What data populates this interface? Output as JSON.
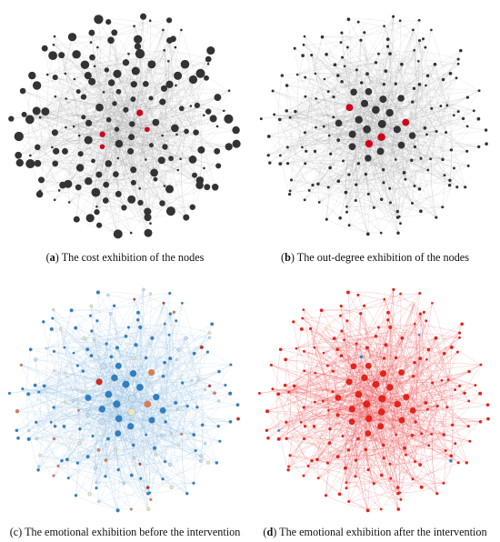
{
  "panels": [
    {
      "id": "a",
      "tag": "a",
      "caption": "The cost exhibition of the nodes",
      "edge_color": "#9a9a9a",
      "node_colors": {
        "base": "#333333",
        "highlight": "#d0021b"
      },
      "mode": "cost"
    },
    {
      "id": "b",
      "tag": "b",
      "caption": "The out-degree exhibition of the nodes",
      "edge_color": "#9a9a9a",
      "node_colors": {
        "base": "#333333",
        "highlight": "#d0021b"
      },
      "mode": "outdegree"
    },
    {
      "id": "c",
      "tag": "c",
      "caption": "The emotional exhibition before the intervention",
      "edge_color": "#8fbbe0",
      "node_colors": {
        "base": "#2f7fc1",
        "light": "#f2e6b8",
        "pale": "#c9ddee",
        "warm": "#e8774a",
        "red": "#d62a1e"
      },
      "mode": "before"
    },
    {
      "id": "d",
      "tag": "d",
      "caption": "The emotional exhibition after the intervention",
      "edge_color": "#e8464a",
      "node_colors": {
        "base": "#e2241b",
        "blue": "#3a7fc4",
        "light": "#f2e6b8"
      },
      "mode": "after"
    }
  ]
}
